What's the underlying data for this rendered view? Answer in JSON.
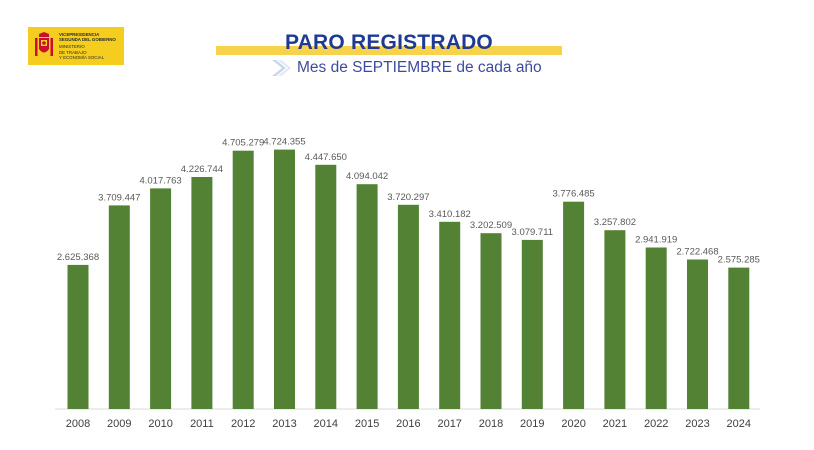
{
  "logo": {
    "line1": "Vicepresidencia",
    "line2": "Segunda del Gobierno",
    "line3": "Ministerio",
    "line4": "de Trabajo",
    "line5": "y Economía Social",
    "colors": {
      "background": "#f4cd1f",
      "emblem": "#c8102e"
    }
  },
  "chart_data": {
    "type": "bar",
    "title": "PARO REGISTRADO",
    "subtitle": "Mes de SEPTIEMBRE de cada año",
    "categories": [
      "2008",
      "2009",
      "2010",
      "2011",
      "2012",
      "2013",
      "2014",
      "2015",
      "2016",
      "2017",
      "2018",
      "2019",
      "2020",
      "2021",
      "2022",
      "2023",
      "2024"
    ],
    "values": [
      2625368,
      3709447,
      4017763,
      4226744,
      4705279,
      4724355,
      4447650,
      4094042,
      3720297,
      3410182,
      3202509,
      3079711,
      3776485,
      3257802,
      2941919,
      2722468,
      2575285
    ],
    "value_labels": [
      "2.625.368",
      "3.709.447",
      "4.017.763",
      "4.226.744",
      "4.705.279",
      "4.724.355",
      "4.447.650",
      "4.094.042",
      "3.720.297",
      "3.410.182",
      "3.202.509",
      "3.079.711",
      "3.776.485",
      "3.257.802",
      "2.941.919",
      "2.722.468",
      "2.575.285"
    ],
    "xlabel": "",
    "ylabel": "",
    "ylim": [
      0,
      4900000
    ],
    "grid": false,
    "colors": {
      "bar": "#548235",
      "title": "#1f3a93",
      "title_highlight": "#f6d24d",
      "subtitle": "#3e4aa0"
    }
  }
}
